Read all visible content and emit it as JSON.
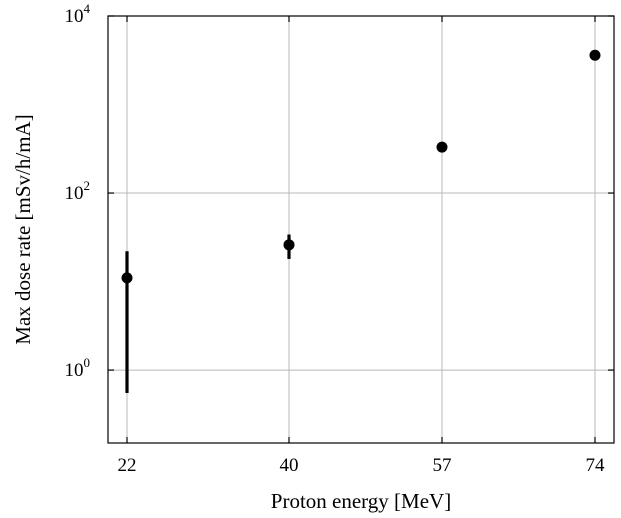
{
  "chart_data": {
    "type": "scatter",
    "title": "",
    "xlabel": "Proton energy [MeV]",
    "ylabel": "Max dose rate [mSv/h/mA]",
    "x_scale": "categorical",
    "y_scale": "log",
    "categories": [
      "22",
      "40",
      "57",
      "74"
    ],
    "ylim": [
      0.15,
      10000
    ],
    "y_ticks": [
      {
        "value": 1,
        "base": "10",
        "exp": "0"
      },
      {
        "value": 100,
        "base": "10",
        "exp": "2"
      },
      {
        "value": 10000,
        "base": "10",
        "exp": "4"
      }
    ],
    "grid": true,
    "points": [
      {
        "x": "22",
        "y": 11,
        "y_low": 0.55,
        "y_high": 22
      },
      {
        "x": "40",
        "y": 26,
        "y_low": 18,
        "y_high": 34
      },
      {
        "x": "57",
        "y": 330,
        "y_low": 330,
        "y_high": 330
      },
      {
        "x": "74",
        "y": 3600,
        "y_low": 3600,
        "y_high": 3600
      }
    ],
    "marker_color": "#000000"
  }
}
